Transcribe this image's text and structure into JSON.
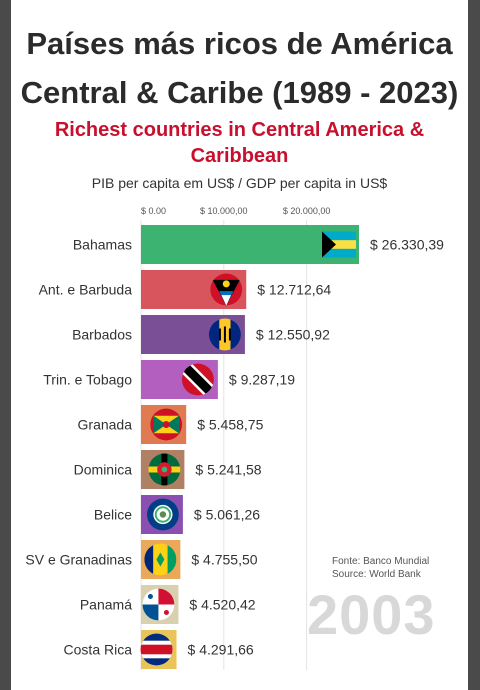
{
  "header": {
    "title_line1": "Países más ricos de América",
    "title_line2": "Central & Caribe (1989 - 2023)",
    "subtitle_line1": "Richest countries in Central America &",
    "subtitle_line2": "Caribbean",
    "axis_title": "PIB per capita em US$ / GDP per capita in US$"
  },
  "footer": {
    "source_es": "Fonte: Banco Mundial",
    "source_en": "Source: World Bank",
    "year": "2003"
  },
  "chart_data": {
    "type": "bar",
    "orientation": "horizontal",
    "xticks": [
      "$ 0.00",
      "$ 10.000,00",
      "$ 20.000,00"
    ],
    "xtick_values": [
      0,
      10000,
      20000
    ],
    "xlim": [
      0,
      26330.39
    ],
    "grid": true,
    "categories": [
      "Bahamas",
      "Ant. e Barbuda",
      "Barbados",
      "Trin. e Tobago",
      "Granada",
      "Dominica",
      "Belice",
      "SV e Granadinas",
      "Panamá",
      "Costa Rica"
    ],
    "values": [
      26330.39,
      12712.64,
      12550.92,
      9287.19,
      5458.75,
      5241.58,
      5061.26,
      4755.5,
      4520.42,
      4291.66
    ],
    "value_labels": [
      "$ 26.330,39",
      "$ 12.712,64",
      "$ 12.550,92",
      "$ 9.287,19",
      "$ 5.458,75",
      "$ 5.241,58",
      "$ 5.061,26",
      "$ 4.755,50",
      "$ 4.520,42",
      "$ 4.291,66"
    ],
    "colors": [
      "#3cb371",
      "#d9555e",
      "#7b4f96",
      "#b35fc0",
      "#e07a50",
      "#b08064",
      "#8a4fb0",
      "#e9a85a",
      "#d9d0b0",
      "#e8c45a"
    ],
    "flags": [
      "bahamas-flag",
      "antigua-barbuda-flag",
      "barbados-flag",
      "trinidad-tobago-flag",
      "grenada-flag",
      "dominica-flag",
      "belize-flag",
      "saint-vincent-flag",
      "panama-flag",
      "costa-rica-flag"
    ]
  }
}
